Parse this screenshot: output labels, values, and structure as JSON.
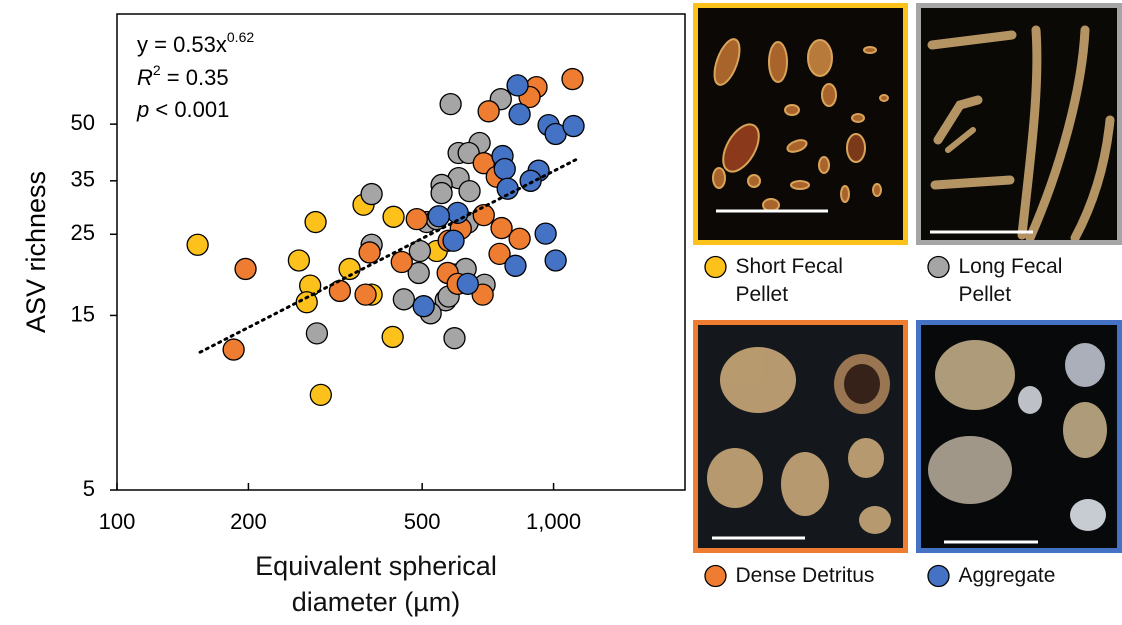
{
  "chart_data": {
    "type": "scatter",
    "x_label": "Equivalent spherical diameter (µm)",
    "y_label": "ASV richness",
    "x_scale": "log",
    "y_scale": "log",
    "xlim": [
      100,
      2000
    ],
    "ylim": [
      5,
      100
    ],
    "xticks": [
      100,
      200,
      500,
      {
        "value": 1000,
        "label": "1,000"
      }
    ],
    "yticks": [
      5,
      15,
      25,
      35,
      50
    ],
    "annotations": {
      "equation": {
        "text": "y = 0.53x",
        "superscript": "0.62"
      },
      "r_squared": {
        "symbol": "R",
        "superscript": "2",
        "text": " = 0.35"
      },
      "p_value": {
        "symbol": "p",
        "text": " < 0.001"
      }
    },
    "trend_line": {
      "x": [
        155,
        1135
      ],
      "y": [
        11.9,
        40.2
      ],
      "color": "#000000"
    },
    "series": [
      {
        "name": "Short Fecal Pellet",
        "color": "#fcc21b",
        "x": [
          153,
          261,
          285,
          277,
          272,
          341,
          367,
          383,
          430,
          428,
          293,
          540
        ],
        "values": [
          23.4,
          21.2,
          27.0,
          18.1,
          16.3,
          20.1,
          30.1,
          17.1,
          27.9,
          13.1,
          9.1,
          22.5
        ]
      },
      {
        "name": "Long Fecal Pellet",
        "color": "#a5a5a5",
        "x": [
          581,
          757,
          677,
          606,
          639,
          606,
          554,
          554,
          642,
          383,
          383,
          287,
          454,
          491,
          494,
          512,
          540,
          566,
          593,
          629,
          636,
          523,
          593,
          575,
          695
        ],
        "values": [
          56.7,
          58.5,
          44.4,
          41.7,
          41.7,
          35.6,
          34.1,
          32.4,
          32.8,
          32.2,
          23.4,
          13.4,
          16.6,
          19.6,
          22.5,
          27.0,
          27.5,
          16.5,
          19.4,
          20.1,
          26.9,
          15.2,
          13.0,
          16.9,
          18.2
        ]
      },
      {
        "name": "Dense Detritus",
        "color": "#ee7d31",
        "x": [
          1105,
          914,
          881,
          710,
          692,
          741,
          692,
          613,
          760,
          575,
          836,
          752,
          572,
          603,
          688,
          449,
          379,
          371,
          324,
          197,
          185,
          486
        ],
        "values": [
          66.4,
          63.1,
          59.3,
          54.2,
          39.1,
          35.9,
          28.2,
          25.9,
          26.0,
          24.0,
          24.3,
          22.1,
          19.6,
          18.3,
          17.1,
          21.0,
          22.3,
          17.1,
          17.5,
          20.1,
          12.1,
          27.5
        ]
      },
      {
        "name": "Aggregate",
        "color": "#4472c4",
        "x": [
          827,
          836,
          974,
          1011,
          1111,
          764,
          773,
          924,
          886,
          785,
          603,
          546,
          590,
          959,
          1011,
          818,
          636,
          504
        ],
        "values": [
          63.8,
          53.2,
          49.7,
          47.0,
          49.4,
          40.9,
          37.7,
          37.3,
          35.0,
          33.3,
          28.6,
          28.0,
          24.0,
          25.1,
          21.2,
          20.5,
          18.3,
          15.9
        ]
      }
    ]
  }
}
